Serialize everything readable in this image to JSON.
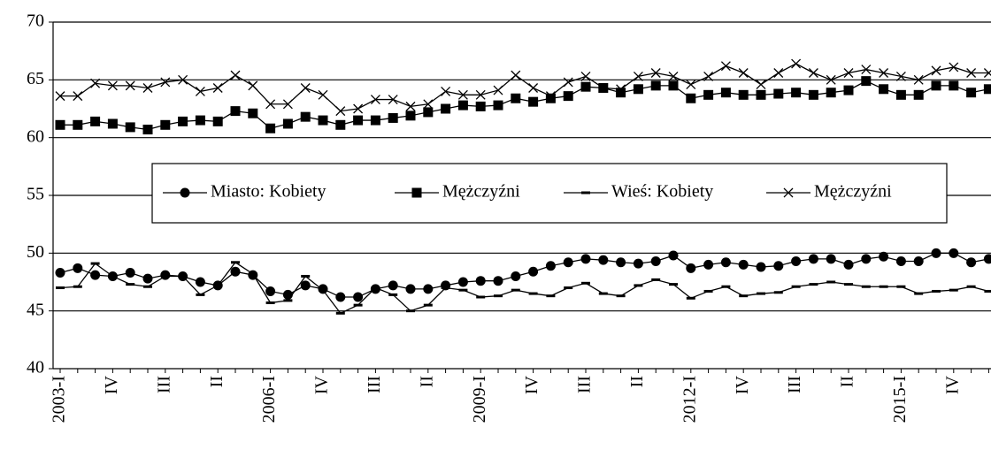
{
  "chart_data": {
    "type": "line",
    "categories": [
      "2003-I",
      null,
      null,
      "IV",
      null,
      null,
      "III",
      null,
      null,
      "II",
      null,
      null,
      "2006-I",
      null,
      null,
      "IV",
      null,
      null,
      "III",
      null,
      null,
      "II",
      null,
      null,
      "2009-I",
      null,
      null,
      "IV",
      null,
      null,
      "III",
      null,
      null,
      "II",
      null,
      null,
      "2012-I",
      null,
      null,
      "IV",
      null,
      null,
      "III",
      null,
      null,
      "II",
      null,
      null,
      "2015-I",
      null,
      null,
      "IV",
      null,
      null
    ],
    "series": [
      {
        "name": "Miasto: Kobiety",
        "color": "#000000",
        "marker": "circle",
        "values": [
          48.3,
          48.7,
          48.1,
          48.0,
          48.3,
          47.8,
          48.1,
          48.0,
          47.5,
          47.2,
          48.4,
          48.1,
          46.7,
          46.4,
          47.2,
          46.9,
          46.2,
          46.2,
          46.9,
          47.2,
          46.9,
          46.9,
          47.2,
          47.5,
          47.6,
          47.6,
          48.0,
          48.4,
          48.9,
          49.2,
          49.5,
          49.4,
          49.2,
          49.1,
          49.3,
          49.8,
          48.7,
          49.0,
          49.2,
          49.0,
          48.8,
          48.9,
          49.3,
          49.5,
          49.5,
          49.0,
          49.5,
          49.7,
          49.3,
          49.3,
          50.0,
          50.0,
          49.2,
          49.5
        ]
      },
      {
        "name": "Mężczyźni",
        "color": "#000000",
        "marker": "square",
        "values": [
          61.1,
          61.1,
          61.4,
          61.2,
          60.9,
          60.7,
          61.1,
          61.4,
          61.5,
          61.4,
          62.3,
          62.1,
          60.8,
          61.2,
          61.8,
          61.5,
          61.1,
          61.5,
          61.5,
          61.7,
          61.9,
          62.2,
          62.5,
          62.8,
          62.7,
          62.8,
          63.4,
          63.1,
          63.4,
          63.6,
          64.4,
          64.3,
          63.9,
          64.2,
          64.5,
          64.5,
          63.4,
          63.7,
          63.9,
          63.7,
          63.7,
          63.8,
          63.9,
          63.7,
          63.9,
          64.1,
          64.9,
          64.2,
          63.7,
          63.7,
          64.5,
          64.5,
          63.9,
          64.2
        ]
      },
      {
        "name": "Wieś: Kobiety",
        "color": "#000000",
        "marker": "dash",
        "values": [
          47.0,
          47.1,
          49.1,
          48.0,
          47.3,
          47.1,
          48.0,
          48.0,
          46.4,
          47.2,
          49.2,
          48.2,
          45.7,
          45.9,
          48.0,
          46.8,
          44.8,
          45.5,
          47.0,
          46.4,
          45.0,
          45.5,
          47.0,
          46.8,
          46.2,
          46.3,
          46.8,
          46.5,
          46.3,
          47.0,
          47.4,
          46.5,
          46.3,
          47.2,
          47.7,
          47.3,
          46.1,
          46.7,
          47.1,
          46.3,
          46.5,
          46.6,
          47.1,
          47.3,
          47.5,
          47.3,
          47.1,
          47.1,
          47.1,
          46.5,
          46.7,
          46.8,
          47.1,
          46.7
        ]
      },
      {
        "name": "Mężczyźni",
        "color": "#000000",
        "marker": "x",
        "values": [
          63.6,
          63.6,
          64.7,
          64.5,
          64.5,
          64.3,
          64.8,
          65.0,
          64.0,
          64.3,
          65.4,
          64.5,
          62.9,
          62.9,
          64.3,
          63.7,
          62.3,
          62.5,
          63.3,
          63.3,
          62.7,
          62.9,
          64.0,
          63.7,
          63.7,
          64.1,
          65.4,
          64.3,
          63.6,
          64.8,
          65.3,
          64.3,
          64.2,
          65.3,
          65.6,
          65.3,
          64.6,
          65.3,
          66.2,
          65.6,
          64.6,
          65.6,
          66.4,
          65.6,
          65.0,
          65.6,
          65.9,
          65.6,
          65.3,
          65.0,
          65.8,
          66.1,
          65.6,
          65.6
        ]
      }
    ],
    "ylim": [
      40,
      70
    ],
    "yticks": [
      40,
      45,
      50,
      55,
      60,
      65,
      70
    ],
    "grid": true,
    "legend": "center"
  }
}
